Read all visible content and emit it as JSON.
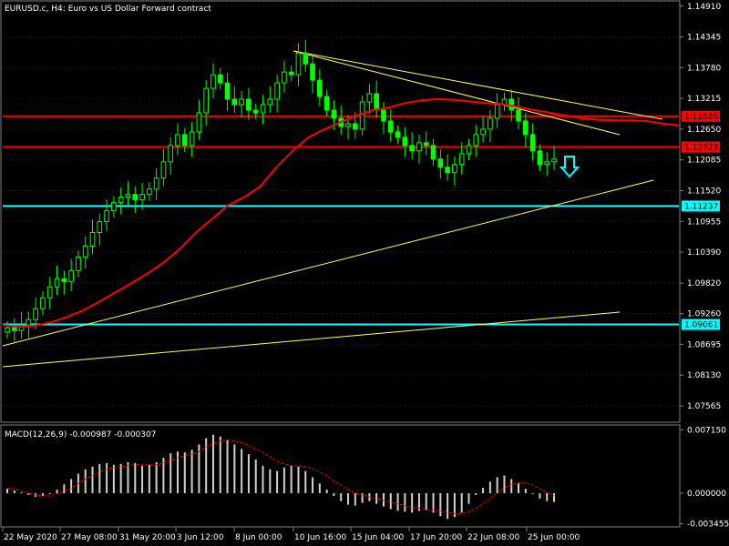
{
  "chart_data": [
    {
      "type": "candlestick",
      "title": "EURUSD.c, H4:  Euro vs US Dollar Forward contract",
      "ylim": [
        1.0728,
        1.1499
      ],
      "y_ticks": [
        "1.14910",
        "1.14345",
        "1.13780",
        "1.13215",
        "1.12650",
        "1.12085",
        "1.11520",
        "1.10955",
        "1.10390",
        "1.09820",
        "1.09260",
        "1.08695",
        "1.08130",
        "1.07565"
      ],
      "y_tick_values": [
        1.1491,
        1.14345,
        1.1378,
        1.13215,
        1.1265,
        1.12085,
        1.1152,
        1.10955,
        1.1039,
        1.0982,
        1.0926,
        1.08695,
        1.0813,
        1.07565
      ],
      "x_ticks": [
        "22 May 2020",
        "27 May 08:00",
        "31 May 20:00",
        "3 Jun 12:00",
        "8 Jun 00:00",
        "10 Jun 16:00",
        "15 Jun 04:00",
        "17 Jun 20:00",
        "22 Jun 08:00",
        "25 Jun 00:00"
      ],
      "price_close": [
        1.09,
        1.0895,
        1.0905,
        1.0915,
        1.0935,
        1.0955,
        1.0975,
        1.099,
        1.0985,
        1.1005,
        1.103,
        1.105,
        1.1075,
        1.1095,
        1.1115,
        1.113,
        1.114,
        1.1145,
        1.1135,
        1.1145,
        1.1155,
        1.1175,
        1.1205,
        1.1235,
        1.1255,
        1.1235,
        1.126,
        1.1295,
        1.134,
        1.1365,
        1.135,
        1.132,
        1.131,
        1.132,
        1.13,
        1.1295,
        1.131,
        1.132,
        1.135,
        1.137,
        1.1365,
        1.1405,
        1.1385,
        1.1355,
        1.1325,
        1.13,
        1.1285,
        1.127,
        1.1275,
        1.1265,
        1.1315,
        1.133,
        1.13,
        1.128,
        1.126,
        1.125,
        1.1235,
        1.1225,
        1.124,
        1.1235,
        1.121,
        1.1195,
        1.1185,
        1.12,
        1.122,
        1.1235,
        1.1255,
        1.1265,
        1.1285,
        1.131,
        1.132,
        1.13,
        1.128,
        1.1255,
        1.1225,
        1.12,
        1.1205,
        1.121
      ],
      "ma_values": [
        1.0905,
        1.0902,
        1.0904,
        1.091,
        1.092,
        1.0932,
        1.0948,
        1.0965,
        1.0982,
        1.1,
        1.102,
        1.1045,
        1.1075,
        1.11,
        1.1125,
        1.114,
        1.116,
        1.1195,
        1.1225,
        1.125,
        1.1265,
        1.1278,
        1.129,
        1.13,
        1.1305,
        1.1313,
        1.1318,
        1.132,
        1.1319,
        1.1316,
        1.1313,
        1.1311,
        1.1306,
        1.13,
        1.1295,
        1.129,
        1.1285,
        1.1282,
        1.1281,
        1.1281,
        1.128,
        1.1275,
        1.1272
      ],
      "horizontal_levels": [
        {
          "value": 1.12886,
          "label": "1.12886",
          "color": "#ff0000"
        },
        {
          "value": 1.12323,
          "label": "1.12323",
          "color": "#ff0000"
        },
        {
          "value": 1.11237,
          "label": "1.11237",
          "color": "#00ffff"
        },
        {
          "value": 1.09061,
          "label": "1.09061",
          "color": "#00ffff"
        }
      ],
      "trendlines_color": "#ffff66",
      "candle_color": "#00ff00",
      "ma_color": "#ff0000",
      "arrow_color": "#00ffff",
      "grid": true
    },
    {
      "type": "histogram",
      "title": "MACD(12,26,9) -0.000987 -0.000307",
      "ylim": [
        -0.0037,
        0.0076
      ],
      "y_ticks": [
        "0.007150",
        "0.000000",
        "-0.003455"
      ],
      "y_tick_values": [
        0.00715,
        0.0,
        -0.003455
      ],
      "histogram": [
        0.0005,
        0.0003,
        0.0001,
        -0.0002,
        -0.0004,
        -0.0003,
        -0.0001,
        0.0004,
        0.001,
        0.0016,
        0.0022,
        0.0027,
        0.003,
        0.0033,
        0.0034,
        0.0032,
        0.0033,
        0.0035,
        0.0034,
        0.0031,
        0.0032,
        0.0035,
        0.004,
        0.0045,
        0.0047,
        0.0046,
        0.0049,
        0.0055,
        0.0062,
        0.0066,
        0.0064,
        0.006,
        0.0055,
        0.005,
        0.0044,
        0.0038,
        0.0031,
        0.0027,
        0.0025,
        0.0029,
        0.0031,
        0.003,
        0.0025,
        0.0018,
        0.0011,
        0.0004,
        -0.0003,
        -0.0009,
        -0.0013,
        -0.0014,
        -0.0011,
        -0.0009,
        -0.0012,
        -0.0015,
        -0.0018,
        -0.002,
        -0.0021,
        -0.0022,
        -0.002,
        -0.0019,
        -0.0022,
        -0.0026,
        -0.0029,
        -0.0027,
        -0.0022,
        -0.0012,
        -0.0002,
        0.0006,
        0.0013,
        0.0018,
        0.002,
        0.0016,
        0.0011,
        0.0005,
        -0.0001,
        -0.0006,
        -0.0009,
        -0.001
      ],
      "signal": [
        0.0006,
        0.0005,
        0.0003,
        0.0,
        -0.0002,
        -0.0003,
        -0.0003,
        -0.0001,
        0.0002,
        0.0006,
        0.0011,
        0.0016,
        0.002,
        0.0024,
        0.0027,
        0.0029,
        0.003,
        0.0031,
        0.0032,
        0.0032,
        0.0032,
        0.0032,
        0.0034,
        0.0037,
        0.004,
        0.0042,
        0.0044,
        0.0047,
        0.0052,
        0.0056,
        0.0059,
        0.006,
        0.0059,
        0.0057,
        0.0054,
        0.005,
        0.0046,
        0.0041,
        0.0036,
        0.0033,
        0.0031,
        0.0031,
        0.003,
        0.0028,
        0.0024,
        0.002,
        0.0014,
        0.0009,
        0.0004,
        0.0,
        -0.0002,
        -0.0004,
        -0.0006,
        -0.0008,
        -0.001,
        -0.0012,
        -0.0014,
        -0.0016,
        -0.0017,
        -0.0018,
        -0.0019,
        -0.002,
        -0.0022,
        -0.0023,
        -0.0023,
        -0.0021,
        -0.0017,
        -0.0012,
        -0.0006,
        0.0,
        0.0006,
        0.001,
        0.0012,
        0.0012,
        0.0009,
        0.0005,
        0.0001,
        -0.0003
      ],
      "histogram_color": "#d0d0d0",
      "signal_color": "#ff0000"
    }
  ]
}
